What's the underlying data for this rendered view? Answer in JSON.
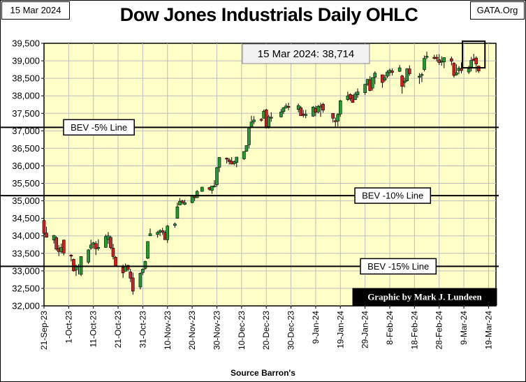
{
  "header": {
    "date": "15 Mar 2024",
    "site": "GATA.Org",
    "title": "Dow Jones Industrials Daily OHLC"
  },
  "annotations": {
    "last_close": "15 Mar 2024:  38,714",
    "credit": "Graphic by Mark J. Lundeen",
    "source": "Source Barron's"
  },
  "colors": {
    "plot_bg": "#ffffc8",
    "up": "#1e9e32",
    "down": "#d21e1e",
    "credit_bg": "#000000",
    "credit_fg": "#ffffff"
  },
  "chart_data": {
    "type": "candlestick",
    "title": "Dow Jones Industrials Daily OHLC",
    "xlabel": "",
    "ylabel": "",
    "ylim": [
      32000,
      39500
    ],
    "y_ticks": [
      32000,
      32500,
      33000,
      33500,
      34000,
      34500,
      35000,
      35500,
      36000,
      36500,
      37000,
      37500,
      38000,
      38500,
      39000,
      39500
    ],
    "y_tick_labels": [
      "32,000",
      "32,500",
      "33,000",
      "33,500",
      "34,000",
      "34,500",
      "35,000",
      "35,500",
      "36,000",
      "36,500",
      "37,000",
      "37,500",
      "38,000",
      "38,500",
      "39,000",
      "39,500"
    ],
    "x_tick_labels": [
      "21-Sep-23",
      "1-Oct-23",
      "11-Oct-23",
      "21-Oct-23",
      "31-Oct-23",
      "10-Nov-23",
      "20-Nov-23",
      "30-Nov-23",
      "10-Dec-23",
      "20-Dec-23",
      "30-Dec-23",
      "9-Jan-24",
      "19-Jan-24",
      "29-Jan-24",
      "8-Feb-24",
      "18-Feb-24",
      "28-Feb-24",
      "9-Mar-24",
      "19-Mar-24"
    ],
    "x_tick_dates": [
      "2023-09-21",
      "2023-10-01",
      "2023-10-11",
      "2023-10-21",
      "2023-10-31",
      "2023-11-10",
      "2023-11-20",
      "2023-11-30",
      "2023-12-10",
      "2023-12-20",
      "2023-12-30",
      "2024-01-09",
      "2024-01-19",
      "2024-01-29",
      "2024-02-08",
      "2024-02-18",
      "2024-02-28",
      "2024-03-09",
      "2024-03-19"
    ],
    "grid": true,
    "reference_lines": [
      {
        "label": "BEV -5% Line",
        "value": 37100
      },
      {
        "label": "BEV -10% Line",
        "value": 35150
      },
      {
        "label": "BEV -15% Line",
        "value": 33130
      }
    ],
    "highlight_range": {
      "start": "2024-03-11",
      "end": "2024-03-15",
      "low": 38800,
      "high": 39560
    },
    "ohlc": [
      {
        "date": "2023-09-21",
        "open": 34440,
        "high": 34520,
        "low": 34060,
        "close": 34070
      },
      {
        "date": "2023-09-22",
        "open": 34080,
        "high": 34260,
        "low": 33950,
        "close": 33960
      },
      {
        "date": "2023-09-25",
        "open": 33880,
        "high": 34030,
        "low": 33780,
        "close": 34010
      },
      {
        "date": "2023-09-26",
        "open": 33950,
        "high": 33990,
        "low": 33580,
        "close": 33620
      },
      {
        "date": "2023-09-27",
        "open": 33640,
        "high": 33740,
        "low": 33420,
        "close": 33550
      },
      {
        "date": "2023-09-28",
        "open": 33550,
        "high": 33780,
        "low": 33500,
        "close": 33670
      },
      {
        "date": "2023-09-29",
        "open": 33880,
        "high": 33890,
        "low": 33440,
        "close": 33510
      },
      {
        "date": "2023-10-02",
        "open": 33450,
        "high": 33480,
        "low": 33270,
        "close": 33430
      },
      {
        "date": "2023-10-03",
        "open": 33330,
        "high": 33350,
        "low": 32980,
        "close": 33000
      },
      {
        "date": "2023-10-04",
        "open": 33030,
        "high": 33180,
        "low": 32850,
        "close": 33130
      },
      {
        "date": "2023-10-05",
        "open": 33140,
        "high": 33190,
        "low": 32900,
        "close": 33120
      },
      {
        "date": "2023-10-06",
        "open": 32900,
        "high": 33420,
        "low": 32850,
        "close": 33410
      },
      {
        "date": "2023-10-09",
        "open": 33250,
        "high": 33620,
        "low": 33200,
        "close": 33600
      },
      {
        "date": "2023-10-10",
        "open": 33650,
        "high": 33890,
        "low": 33600,
        "close": 33740
      },
      {
        "date": "2023-10-11",
        "open": 33760,
        "high": 33830,
        "low": 33640,
        "close": 33800
      },
      {
        "date": "2023-10-12",
        "open": 33780,
        "high": 33850,
        "low": 33450,
        "close": 33630
      },
      {
        "date": "2023-10-13",
        "open": 33640,
        "high": 33900,
        "low": 33580,
        "close": 33670
      },
      {
        "date": "2023-10-16",
        "open": 33670,
        "high": 34040,
        "low": 33660,
        "close": 33980
      },
      {
        "date": "2023-10-17",
        "open": 33900,
        "high": 34110,
        "low": 33770,
        "close": 34000
      },
      {
        "date": "2023-10-18",
        "open": 33960,
        "high": 34000,
        "low": 33620,
        "close": 33660
      },
      {
        "date": "2023-10-19",
        "open": 33650,
        "high": 33770,
        "low": 33330,
        "close": 33410
      },
      {
        "date": "2023-10-20",
        "open": 33390,
        "high": 33420,
        "low": 33120,
        "close": 33130
      },
      {
        "date": "2023-10-23",
        "open": 33100,
        "high": 33180,
        "low": 32800,
        "close": 32940
      },
      {
        "date": "2023-10-24",
        "open": 32990,
        "high": 33210,
        "low": 32980,
        "close": 33140
      },
      {
        "date": "2023-10-25",
        "open": 33160,
        "high": 33170,
        "low": 32990,
        "close": 33040
      },
      {
        "date": "2023-10-26",
        "open": 32970,
        "high": 33060,
        "low": 32680,
        "close": 32790
      },
      {
        "date": "2023-10-27",
        "open": 32800,
        "high": 32950,
        "low": 32320,
        "close": 32420
      },
      {
        "date": "2023-10-30",
        "open": 32540,
        "high": 32960,
        "low": 32470,
        "close": 32930
      },
      {
        "date": "2023-10-31",
        "open": 32950,
        "high": 33070,
        "low": 32880,
        "close": 33050
      },
      {
        "date": "2023-11-01",
        "open": 33070,
        "high": 33290,
        "low": 33030,
        "close": 33270
      },
      {
        "date": "2023-11-02",
        "open": 33360,
        "high": 33840,
        "low": 33340,
        "close": 33840
      },
      {
        "date": "2023-11-03",
        "open": 34000,
        "high": 34210,
        "low": 34000,
        "close": 34060
      },
      {
        "date": "2023-11-06",
        "open": 34040,
        "high": 34140,
        "low": 33950,
        "close": 34100
      },
      {
        "date": "2023-11-07",
        "open": 34100,
        "high": 34190,
        "low": 34000,
        "close": 34150
      },
      {
        "date": "2023-11-08",
        "open": 34150,
        "high": 34230,
        "low": 34030,
        "close": 34110
      },
      {
        "date": "2023-11-09",
        "open": 34100,
        "high": 34160,
        "low": 33890,
        "close": 33890
      },
      {
        "date": "2023-11-10",
        "open": 33890,
        "high": 34310,
        "low": 33800,
        "close": 34280
      },
      {
        "date": "2023-11-13",
        "open": 34300,
        "high": 34380,
        "low": 34230,
        "close": 34340
      },
      {
        "date": "2023-11-14",
        "open": 34500,
        "high": 34950,
        "low": 34500,
        "close": 34830
      },
      {
        "date": "2023-11-15",
        "open": 34880,
        "high": 35080,
        "low": 34890,
        "close": 34990
      },
      {
        "date": "2023-11-16",
        "open": 35000,
        "high": 35030,
        "low": 34900,
        "close": 34950
      },
      {
        "date": "2023-11-17",
        "open": 34900,
        "high": 35030,
        "low": 34880,
        "close": 34950
      },
      {
        "date": "2023-11-20",
        "open": 34950,
        "high": 35150,
        "low": 34930,
        "close": 35150
      },
      {
        "date": "2023-11-21",
        "open": 35150,
        "high": 35150,
        "low": 35000,
        "close": 35090
      },
      {
        "date": "2023-11-22",
        "open": 35090,
        "high": 35310,
        "low": 35080,
        "close": 35270
      },
      {
        "date": "2023-11-24",
        "open": 35270,
        "high": 35400,
        "low": 35260,
        "close": 35390
      },
      {
        "date": "2023-11-27",
        "open": 35380,
        "high": 35400,
        "low": 35290,
        "close": 35330
      },
      {
        "date": "2023-11-28",
        "open": 35300,
        "high": 35430,
        "low": 35200,
        "close": 35420
      },
      {
        "date": "2023-11-29",
        "open": 35400,
        "high": 35590,
        "low": 35380,
        "close": 35430
      },
      {
        "date": "2023-11-30",
        "open": 35460,
        "high": 35970,
        "low": 35400,
        "close": 35950
      },
      {
        "date": "2023-12-01",
        "open": 35960,
        "high": 36230,
        "low": 35820,
        "close": 36240
      },
      {
        "date": "2023-12-04",
        "open": 36220,
        "high": 36240,
        "low": 36070,
        "close": 36200
      },
      {
        "date": "2023-12-05",
        "open": 36170,
        "high": 36220,
        "low": 36040,
        "close": 36120
      },
      {
        "date": "2023-12-06",
        "open": 36130,
        "high": 36250,
        "low": 36040,
        "close": 36050
      },
      {
        "date": "2023-12-07",
        "open": 36060,
        "high": 36150,
        "low": 36020,
        "close": 36120
      },
      {
        "date": "2023-12-08",
        "open": 36100,
        "high": 36250,
        "low": 35960,
        "close": 36250
      },
      {
        "date": "2023-12-11",
        "open": 36200,
        "high": 36410,
        "low": 36170,
        "close": 36410
      },
      {
        "date": "2023-12-12",
        "open": 36420,
        "high": 36580,
        "low": 36400,
        "close": 36580
      },
      {
        "date": "2023-12-13",
        "open": 36600,
        "high": 37100,
        "low": 36500,
        "close": 37090
      },
      {
        "date": "2023-12-14",
        "open": 37100,
        "high": 37430,
        "low": 37080,
        "close": 37250
      },
      {
        "date": "2023-12-15",
        "open": 37260,
        "high": 37420,
        "low": 37190,
        "close": 37310
      },
      {
        "date": "2023-12-18",
        "open": 37330,
        "high": 37360,
        "low": 37260,
        "close": 37310
      },
      {
        "date": "2023-12-19",
        "open": 37360,
        "high": 37610,
        "low": 37350,
        "close": 37560
      },
      {
        "date": "2023-12-20",
        "open": 37600,
        "high": 37630,
        "low": 37080,
        "close": 37080
      },
      {
        "date": "2023-12-21",
        "open": 37120,
        "high": 37460,
        "low": 37060,
        "close": 37400
      },
      {
        "date": "2023-12-22",
        "open": 37390,
        "high": 37530,
        "low": 37260,
        "close": 37390
      },
      {
        "date": "2023-12-26",
        "open": 37400,
        "high": 37620,
        "low": 37380,
        "close": 37540
      },
      {
        "date": "2023-12-27",
        "open": 37550,
        "high": 37680,
        "low": 37480,
        "close": 37660
      },
      {
        "date": "2023-12-28",
        "open": 37660,
        "high": 37780,
        "low": 37630,
        "close": 37710
      },
      {
        "date": "2023-12-29",
        "open": 37700,
        "high": 37800,
        "low": 37590,
        "close": 37690
      },
      {
        "date": "2024-01-02",
        "open": 37610,
        "high": 37780,
        "low": 37530,
        "close": 37720
      },
      {
        "date": "2024-01-03",
        "open": 37660,
        "high": 37710,
        "low": 37430,
        "close": 37430
      },
      {
        "date": "2024-01-04",
        "open": 37480,
        "high": 37600,
        "low": 37380,
        "close": 37440
      },
      {
        "date": "2024-01-05",
        "open": 37460,
        "high": 37600,
        "low": 37360,
        "close": 37470
      },
      {
        "date": "2024-01-08",
        "open": 37420,
        "high": 37710,
        "low": 37400,
        "close": 37680
      },
      {
        "date": "2024-01-09",
        "open": 37640,
        "high": 37720,
        "low": 37420,
        "close": 37530
      },
      {
        "date": "2024-01-10",
        "open": 37540,
        "high": 37740,
        "low": 37500,
        "close": 37700
      },
      {
        "date": "2024-01-11",
        "open": 37710,
        "high": 37800,
        "low": 37400,
        "close": 37710
      },
      {
        "date": "2024-01-12",
        "open": 37760,
        "high": 37800,
        "low": 37520,
        "close": 37590
      },
      {
        "date": "2024-01-16",
        "open": 37500,
        "high": 37500,
        "low": 37240,
        "close": 37360
      },
      {
        "date": "2024-01-17",
        "open": 37290,
        "high": 37380,
        "low": 37120,
        "close": 37270
      },
      {
        "date": "2024-01-18",
        "open": 37280,
        "high": 37500,
        "low": 37130,
        "close": 37470
      },
      {
        "date": "2024-01-19",
        "open": 37480,
        "high": 37880,
        "low": 37400,
        "close": 37860
      },
      {
        "date": "2024-01-22",
        "open": 37890,
        "high": 38120,
        "low": 37850,
        "close": 38000
      },
      {
        "date": "2024-01-23",
        "open": 38040,
        "high": 38070,
        "low": 37850,
        "close": 37910
      },
      {
        "date": "2024-01-24",
        "open": 38010,
        "high": 38030,
        "low": 37800,
        "close": 37810
      },
      {
        "date": "2024-01-25",
        "open": 37890,
        "high": 38110,
        "low": 37880,
        "close": 38050
      },
      {
        "date": "2024-01-26",
        "open": 38030,
        "high": 38210,
        "low": 37940,
        "close": 38110
      },
      {
        "date": "2024-01-29",
        "open": 38090,
        "high": 38340,
        "low": 38030,
        "close": 38330
      },
      {
        "date": "2024-01-30",
        "open": 38330,
        "high": 38480,
        "low": 38280,
        "close": 38470
      },
      {
        "date": "2024-01-31",
        "open": 38460,
        "high": 38560,
        "low": 38130,
        "close": 38150
      },
      {
        "date": "2024-02-01",
        "open": 38220,
        "high": 38530,
        "low": 38150,
        "close": 38520
      },
      {
        "date": "2024-02-02",
        "open": 38530,
        "high": 38700,
        "low": 38330,
        "close": 38650
      },
      {
        "date": "2024-02-05",
        "open": 38600,
        "high": 38610,
        "low": 38230,
        "close": 38380
      },
      {
        "date": "2024-02-06",
        "open": 38450,
        "high": 38600,
        "low": 38400,
        "close": 38520
      },
      {
        "date": "2024-02-07",
        "open": 38560,
        "high": 38730,
        "low": 38510,
        "close": 38680
      },
      {
        "date": "2024-02-08",
        "open": 38660,
        "high": 38780,
        "low": 38570,
        "close": 38730
      },
      {
        "date": "2024-02-09",
        "open": 38710,
        "high": 38780,
        "low": 38580,
        "close": 38670
      },
      {
        "date": "2024-02-12",
        "open": 38700,
        "high": 38880,
        "low": 38680,
        "close": 38800
      },
      {
        "date": "2024-02-13",
        "open": 38570,
        "high": 38600,
        "low": 38060,
        "close": 38270
      },
      {
        "date": "2024-02-14",
        "open": 38380,
        "high": 38520,
        "low": 38240,
        "close": 38420
      },
      {
        "date": "2024-02-15",
        "open": 38430,
        "high": 38790,
        "low": 38400,
        "close": 38770
      },
      {
        "date": "2024-02-16",
        "open": 38770,
        "high": 38870,
        "low": 38570,
        "close": 38630
      },
      {
        "date": "2024-02-20",
        "open": 38540,
        "high": 38650,
        "low": 38340,
        "close": 38560
      },
      {
        "date": "2024-02-21",
        "open": 38580,
        "high": 38660,
        "low": 38390,
        "close": 38610
      },
      {
        "date": "2024-02-22",
        "open": 38750,
        "high": 39150,
        "low": 38700,
        "close": 39070
      },
      {
        "date": "2024-02-23",
        "open": 39120,
        "high": 39260,
        "low": 39050,
        "close": 39130
      },
      {
        "date": "2024-02-26",
        "open": 39100,
        "high": 39170,
        "low": 39040,
        "close": 39070
      },
      {
        "date": "2024-02-27",
        "open": 39100,
        "high": 39180,
        "low": 38980,
        "close": 39060
      },
      {
        "date": "2024-02-28",
        "open": 39030,
        "high": 39190,
        "low": 38880,
        "close": 38950
      },
      {
        "date": "2024-02-29",
        "open": 38990,
        "high": 39130,
        "low": 38860,
        "close": 38990
      },
      {
        "date": "2024-03-01",
        "open": 38970,
        "high": 39100,
        "low": 38790,
        "close": 39090
      },
      {
        "date": "2024-03-04",
        "open": 39060,
        "high": 39120,
        "low": 38870,
        "close": 38990
      },
      {
        "date": "2024-03-05",
        "open": 38930,
        "high": 38960,
        "low": 38520,
        "close": 38580
      },
      {
        "date": "2024-03-06",
        "open": 38600,
        "high": 38900,
        "low": 38580,
        "close": 38660
      },
      {
        "date": "2024-03-07",
        "open": 38720,
        "high": 38850,
        "low": 38620,
        "close": 38790
      },
      {
        "date": "2024-03-08",
        "open": 38780,
        "high": 38960,
        "low": 38640,
        "close": 38720
      },
      {
        "date": "2024-03-11",
        "open": 38680,
        "high": 38860,
        "low": 38620,
        "close": 38770
      },
      {
        "date": "2024-03-12",
        "open": 38820,
        "high": 39110,
        "low": 38700,
        "close": 39010
      },
      {
        "date": "2024-03-13",
        "open": 39050,
        "high": 39200,
        "low": 38990,
        "close": 39040
      },
      {
        "date": "2024-03-14",
        "open": 39080,
        "high": 39130,
        "low": 38670,
        "close": 38910
      },
      {
        "date": "2024-03-15",
        "open": 38850,
        "high": 38860,
        "low": 38650,
        "close": 38710
      }
    ]
  }
}
